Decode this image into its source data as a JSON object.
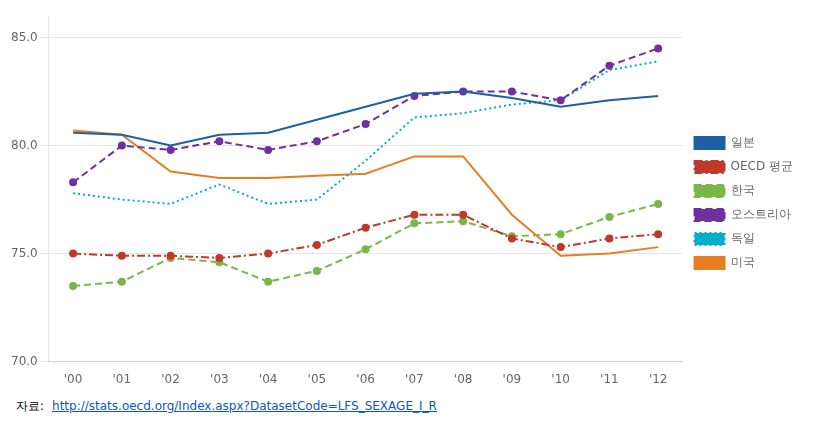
{
  "chart_data": {
    "type": "line",
    "categories": [
      "'00",
      "'01",
      "'02",
      "'03",
      "'04",
      "'05",
      "'06",
      "'07",
      "'08",
      "'09",
      "'10",
      "'11",
      "'12"
    ],
    "series": [
      {
        "name": "일본",
        "color": "#1f5fa6",
        "line_style": "solid",
        "marker": "none",
        "values": [
          80.6,
          80.5,
          80.0,
          80.5,
          80.6,
          81.2,
          81.8,
          82.4,
          82.5,
          82.2,
          81.8,
          82.1,
          82.3
        ]
      },
      {
        "name": "OECD 평균",
        "color": "#c0392b",
        "line_style": "dashdot",
        "marker": "circle",
        "values": [
          75.0,
          74.9,
          74.9,
          74.8,
          75.0,
          75.4,
          76.2,
          76.8,
          76.8,
          75.7,
          75.3,
          75.7,
          75.9
        ]
      },
      {
        "name": "한국",
        "color": "#7ab648",
        "line_style": "dashed",
        "marker": "circle",
        "values": [
          73.5,
          73.7,
          74.8,
          74.6,
          73.7,
          74.2,
          75.2,
          76.4,
          76.5,
          75.8,
          75.9,
          76.7,
          77.3
        ]
      },
      {
        "name": "오스트리아",
        "color": "#7030a0",
        "line_style": "dashed",
        "marker": "circle",
        "values": [
          78.3,
          80.0,
          79.8,
          80.2,
          79.8,
          80.2,
          81.0,
          82.3,
          82.5,
          82.5,
          82.1,
          83.7,
          84.5
        ]
      },
      {
        "name": "독일",
        "color": "#00b0c8",
        "line_style": "dotted",
        "marker": "none",
        "values": [
          77.8,
          77.5,
          77.3,
          78.2,
          77.3,
          77.5,
          79.3,
          81.3,
          81.5,
          81.9,
          82.1,
          83.5,
          83.9
        ]
      },
      {
        "name": "미국",
        "color": "#e67e22",
        "line_style": "solid",
        "marker": "none",
        "values": [
          80.7,
          80.5,
          78.8,
          78.5,
          78.5,
          78.6,
          78.7,
          79.5,
          79.5,
          76.8,
          74.9,
          75.0,
          75.3
        ]
      }
    ],
    "ylim": [
      70.0,
      86.0
    ],
    "yticks": [
      {
        "value": 70,
        "label": "70.0"
      },
      {
        "value": 75,
        "label": "75.0"
      },
      {
        "value": 80,
        "label": "80.0"
      },
      {
        "value": 85,
        "label": "85.0"
      }
    ],
    "grid": "y",
    "legend": "right",
    "annotations": [
      "자료:",
      "http://stats.oecd.org/Index.aspx?DatasetCode=LFS_SEXAGE_I_R"
    ]
  }
}
